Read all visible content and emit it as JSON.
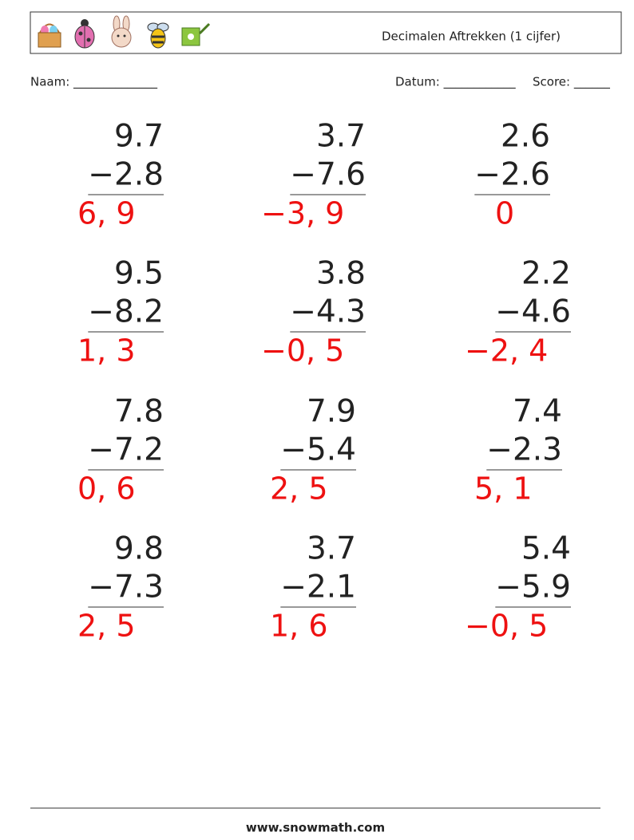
{
  "header": {
    "title": "Decimalen Aftrekken (1 cijfer)"
  },
  "fields": {
    "name": "Naam: ______________",
    "date": "Datum: ____________",
    "score": "Score: ______"
  },
  "problems": [
    {
      "top": "9.7",
      "bottom": "−2.8",
      "answer": "6, 9"
    },
    {
      "top": "3.7",
      "bottom": "−7.6",
      "answer": "−3, 9"
    },
    {
      "top": "2.6",
      "bottom": "−2.6",
      "answer": "0"
    },
    {
      "top": "9.5",
      "bottom": "−8.2",
      "answer": "1, 3"
    },
    {
      "top": "3.8",
      "bottom": "−4.3",
      "answer": "−0, 5"
    },
    {
      "top": "2.2",
      "bottom": "−4.6",
      "answer": "−2, 4"
    },
    {
      "top": "7.8",
      "bottom": "−7.2",
      "answer": "0, 6"
    },
    {
      "top": "7.9",
      "bottom": "−5.4",
      "answer": "2, 5"
    },
    {
      "top": "7.4",
      "bottom": "−2.3",
      "answer": "5, 1"
    },
    {
      "top": "9.8",
      "bottom": "−7.3",
      "answer": "2, 5"
    },
    {
      "top": "3.7",
      "bottom": "−2.1",
      "answer": "1, 6"
    },
    {
      "top": "5.4",
      "bottom": "−5.9",
      "answer": "−0, 5"
    }
  ],
  "footer": "www.snowmath.com"
}
